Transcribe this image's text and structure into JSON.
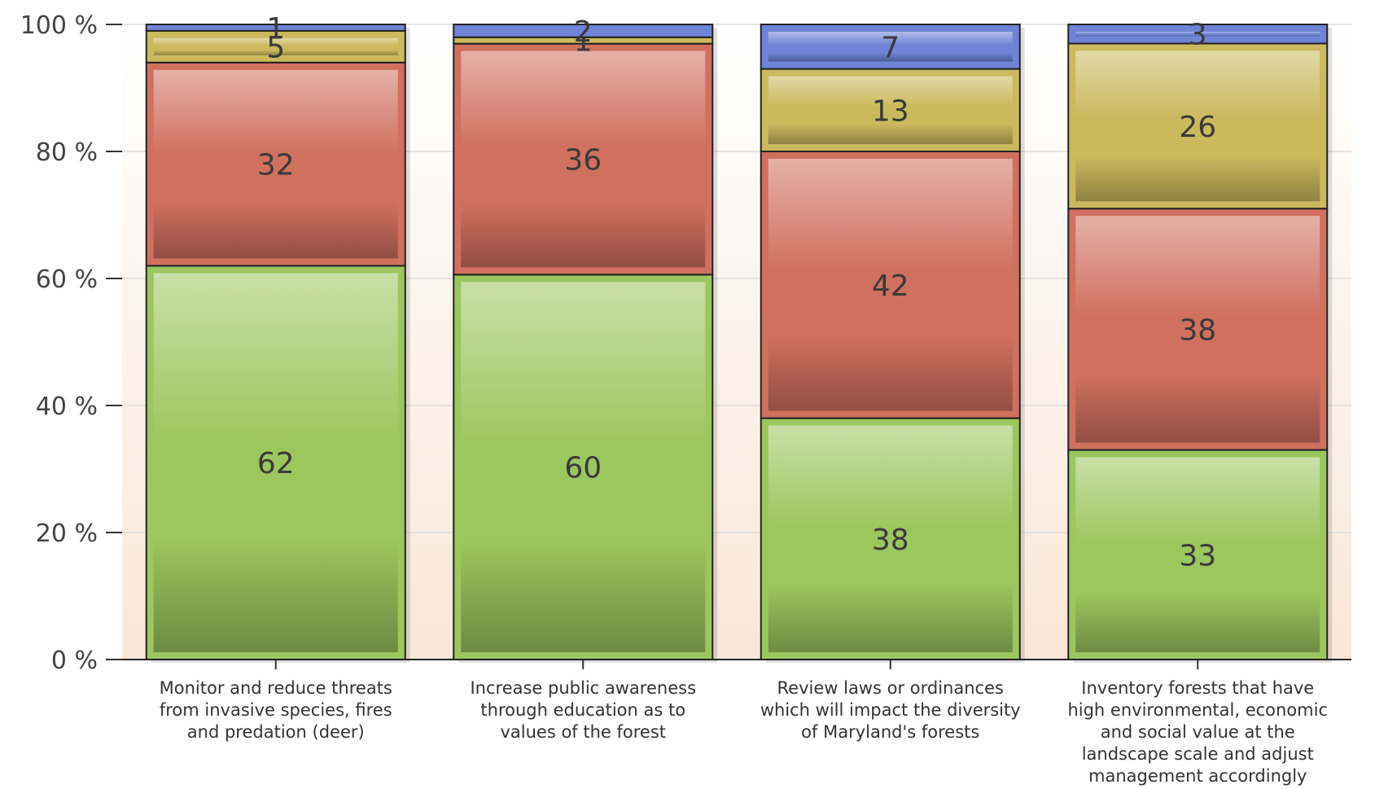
{
  "chart_data": {
    "type": "bar",
    "stacked": true,
    "normalized_percent": true,
    "title": "",
    "xlabel": "",
    "ylabel": "",
    "ylim": [
      0,
      100
    ],
    "y_ticks": [
      "0 %",
      "20 %",
      "40 %",
      "60 %",
      "80 %",
      "100 %"
    ],
    "grid": true,
    "categories": [
      [
        "Monitor and reduce threats",
        "from invasive species, fires",
        "and predation (deer)"
      ],
      [
        "Increase public awareness",
        "through education as to",
        "values of the forest"
      ],
      [
        "Review laws or ordinances",
        "which will impact the diversity",
        "of Maryland's forests"
      ],
      [
        "Inventory forests that have",
        "high environmental, economic",
        "and social value at the",
        "landscape scale and adjust",
        "management accordingly"
      ]
    ],
    "series": [
      {
        "color": "#9cc65e",
        "values": [
          62,
          60,
          38,
          33
        ]
      },
      {
        "color": "#d0705f",
        "values": [
          32,
          36,
          42,
          38
        ]
      },
      {
        "color": "#cbb95e",
        "values": [
          5,
          1,
          13,
          26
        ]
      },
      {
        "color": "#6f84d6",
        "values": [
          1,
          2,
          7,
          3
        ]
      }
    ]
  }
}
